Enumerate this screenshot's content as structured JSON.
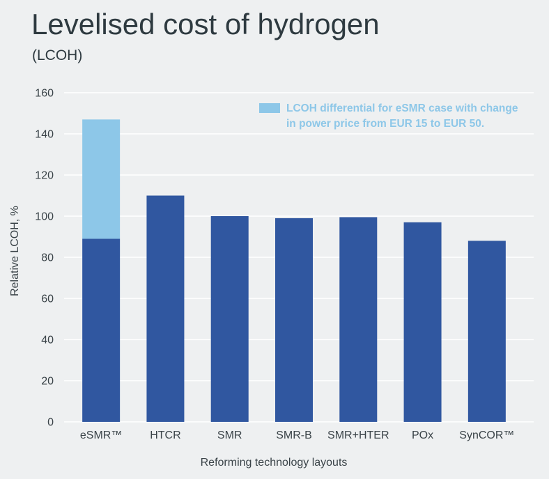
{
  "colors": {
    "background": "#eef0f1",
    "text": "#2e3a40",
    "grid": "#ffffff",
    "legend_text": "#8dc7e8"
  },
  "chart_data": {
    "type": "bar",
    "stacked": true,
    "title": "Levelised cost of hydrogen",
    "subtitle": "(LCOH)",
    "xlabel": "Reforming technology layouts",
    "ylabel": "Relative LCOH, %",
    "ylim": [
      0,
      160
    ],
    "yticks": [
      0,
      20,
      40,
      60,
      80,
      100,
      120,
      140,
      160
    ],
    "grid": true,
    "categories": [
      "eSMR™",
      "HTCR",
      "SMR",
      "SMR-B",
      "SMR+HTER",
      "POx",
      "SynCOR™"
    ],
    "series": [
      {
        "values": [
          89,
          110,
          100,
          99,
          99.5,
          97,
          88
        ],
        "color": "#3057a0"
      },
      {
        "name": "LCOH differential for eSMR case with change in power price from EUR 15 to EUR 50.",
        "values": [
          58,
          null,
          null,
          null,
          null,
          null,
          null
        ],
        "color": "#8dc7e8"
      }
    ],
    "legend": {
      "position": "top-right"
    }
  }
}
